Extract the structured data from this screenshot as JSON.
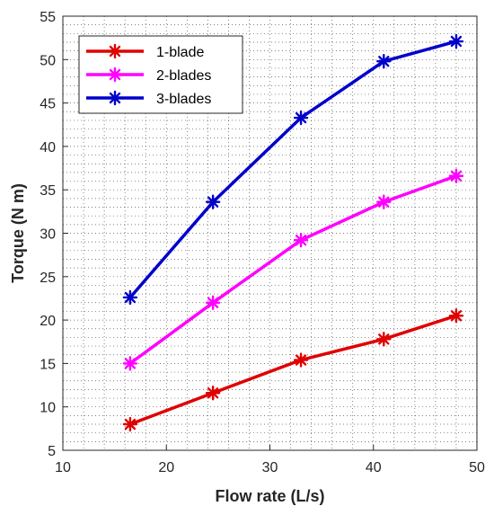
{
  "chart_data": {
    "type": "line",
    "x": [
      16.5,
      24.5,
      33,
      41,
      48
    ],
    "series": [
      {
        "name": "1-blade",
        "color": "#e00000",
        "values": [
          8.0,
          11.6,
          15.4,
          17.8,
          20.5
        ]
      },
      {
        "name": "2-blades",
        "color": "#ff00ff",
        "values": [
          15.0,
          22.0,
          29.2,
          33.6,
          36.6
        ]
      },
      {
        "name": "3-blades",
        "color": "#0000cc",
        "values": [
          22.6,
          33.6,
          43.3,
          49.8,
          52.1
        ]
      }
    ],
    "xlabel": "Flow rate (L/s)",
    "ylabel": "Torque (N m)",
    "xlim": [
      10,
      50
    ],
    "ylim": [
      5,
      55
    ],
    "xticks": [
      10,
      20,
      30,
      40,
      50
    ],
    "yticks": [
      5,
      10,
      15,
      20,
      25,
      30,
      35,
      40,
      45,
      50,
      55
    ],
    "grid": "minor-dotted",
    "legend_position": "top-left",
    "marker": "asterisk"
  }
}
